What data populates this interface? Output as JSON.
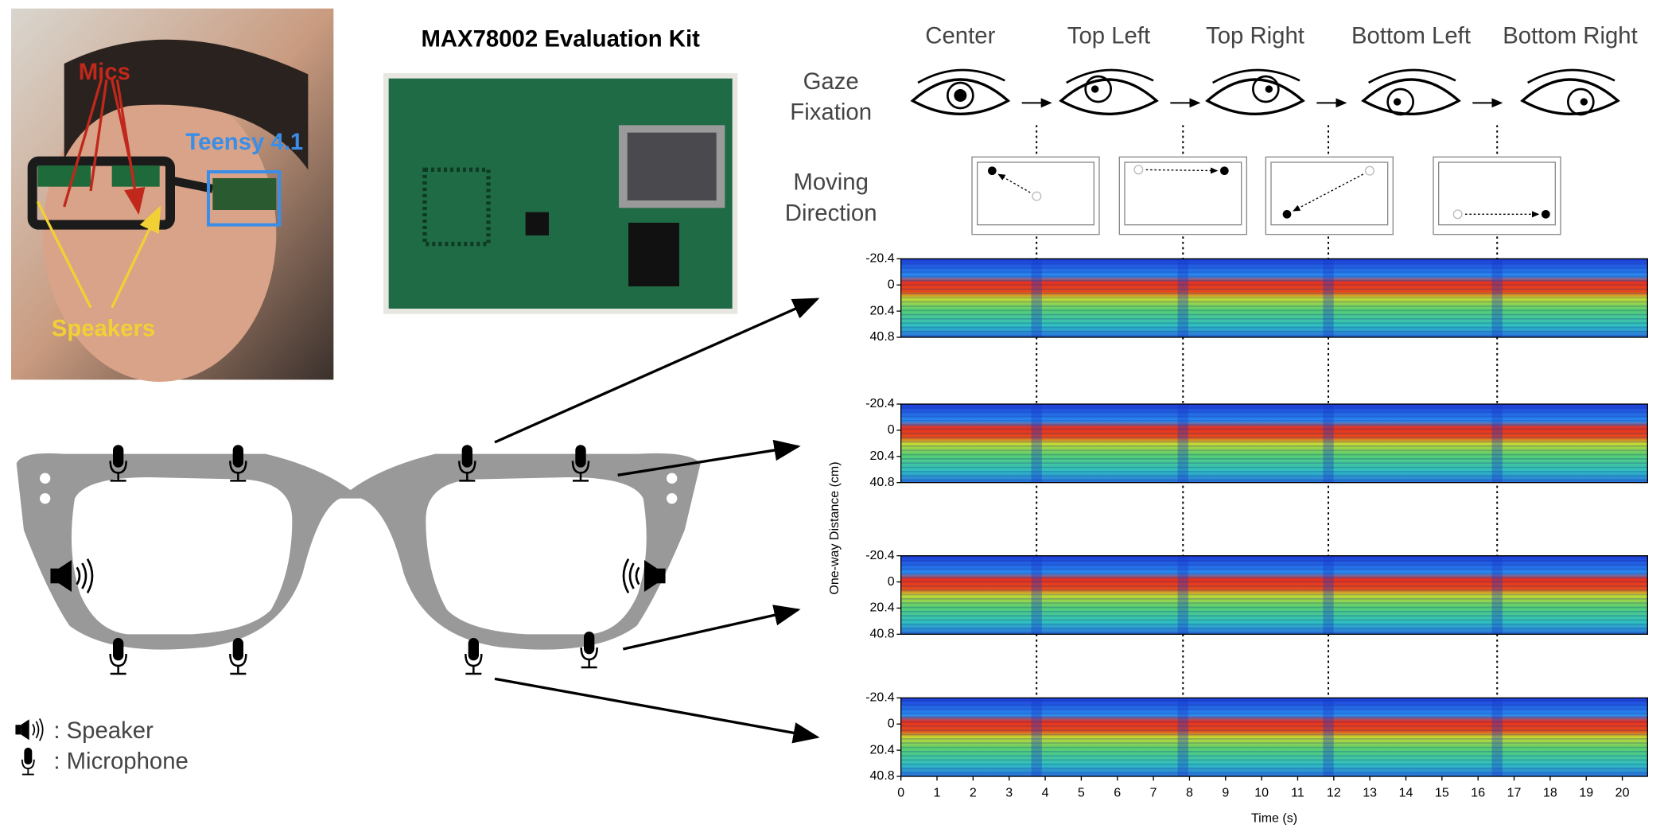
{
  "photo_labels": {
    "mics": "Mics",
    "teensy": "Teensy 4.1",
    "speakers": "Speakers"
  },
  "board_title": "MAX78002 Evaluation Kit",
  "gaze_targets": [
    "Center",
    "Top Left",
    "Top Right",
    "Bottom Left",
    "Bottom Right"
  ],
  "gaze_label": [
    "Gaze",
    "Fixation"
  ],
  "direction_label": [
    "Moving",
    "Direction"
  ],
  "legend": {
    "speaker": ": Speaker",
    "microphone": ": Microphone"
  },
  "chart_data": {
    "type": "heatmap",
    "ylabel": "One-way Distance (cm)",
    "xlabel": "Time (s)",
    "xlim": [
      0,
      20.7
    ],
    "ylim": [
      -20.4,
      40.8
    ],
    "yticks": [
      -20.4,
      0,
      20.4,
      40.8
    ],
    "xticks": [
      0,
      1,
      2,
      3,
      4,
      5,
      6,
      7,
      8,
      9,
      10,
      11,
      12,
      13,
      14,
      15,
      16,
      17,
      18,
      19,
      20
    ],
    "transitions": [
      3.76,
      7.82,
      11.85,
      16.53
    ]
  }
}
